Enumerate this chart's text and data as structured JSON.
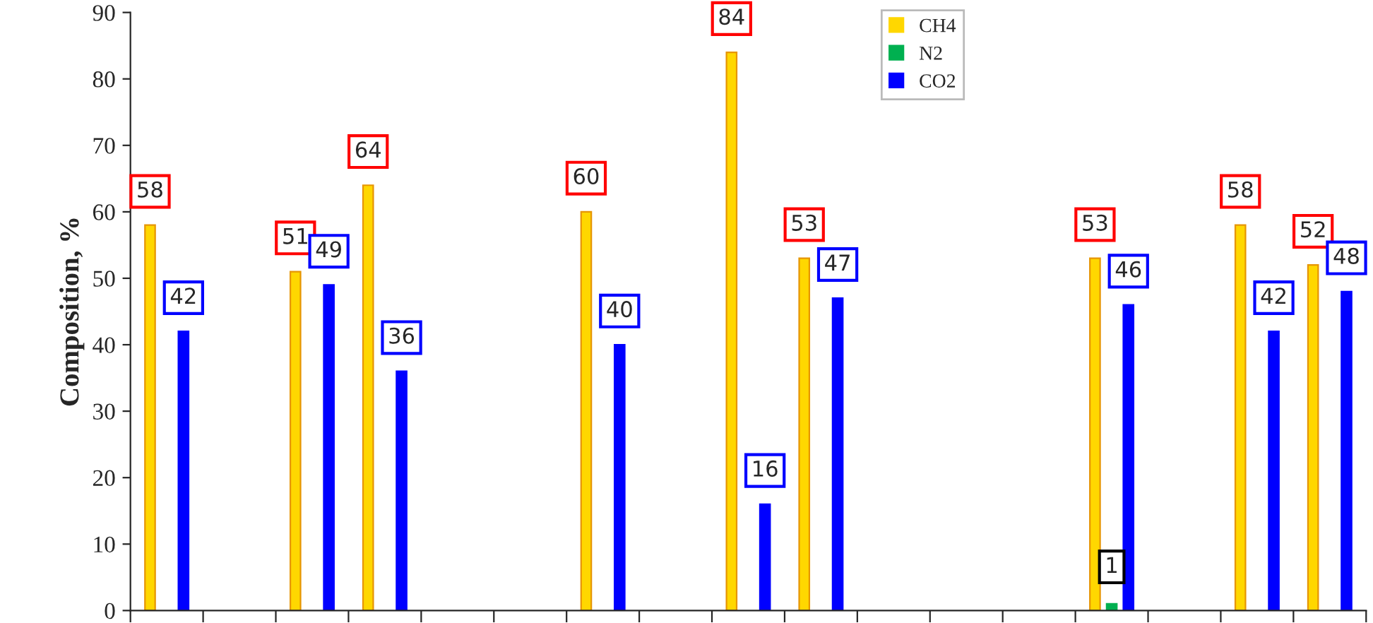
{
  "chart_data": {
    "type": "bar",
    "ylabel": "Composition, %",
    "categories": [
      null,
      null,
      null,
      null,
      null,
      null,
      null,
      null,
      null,
      null,
      null,
      null,
      null,
      null,
      null,
      null,
      null
    ],
    "series": [
      {
        "name": "CH4",
        "color": "#ffd700",
        "values": [
          58,
          null,
          51,
          64,
          null,
          null,
          60,
          null,
          84,
          53,
          null,
          null,
          null,
          53,
          null,
          58,
          52
        ],
        "value_labels": [
          "58",
          null,
          "51",
          "64",
          null,
          null,
          "60",
          null,
          "84",
          "53",
          null,
          null,
          null,
          "53",
          null,
          "58",
          "52"
        ]
      },
      {
        "name": "N2",
        "color": "#00b050",
        "values": [
          null,
          null,
          null,
          null,
          null,
          null,
          null,
          null,
          null,
          null,
          null,
          null,
          null,
          1,
          null,
          null,
          null
        ],
        "value_labels": [
          null,
          null,
          null,
          null,
          null,
          null,
          null,
          null,
          null,
          null,
          null,
          null,
          null,
          "1",
          null,
          null,
          null
        ]
      },
      {
        "name": "CO2",
        "color": "#0000ff",
        "values": [
          42,
          null,
          49,
          36,
          null,
          null,
          40,
          null,
          16,
          47,
          null,
          null,
          null,
          46,
          null,
          42,
          48
        ],
        "value_labels": [
          "42",
          null,
          "49",
          "36",
          null,
          null,
          "40",
          null,
          "16",
          "47",
          null,
          null,
          null,
          "46",
          null,
          "42",
          "48"
        ]
      }
    ],
    "ylim": [
      0,
      90
    ],
    "yticks": [
      0,
      10,
      20,
      30,
      40,
      50,
      60,
      70,
      80,
      90
    ],
    "grid": false,
    "legend": "top",
    "tick_labels": "y"
  }
}
